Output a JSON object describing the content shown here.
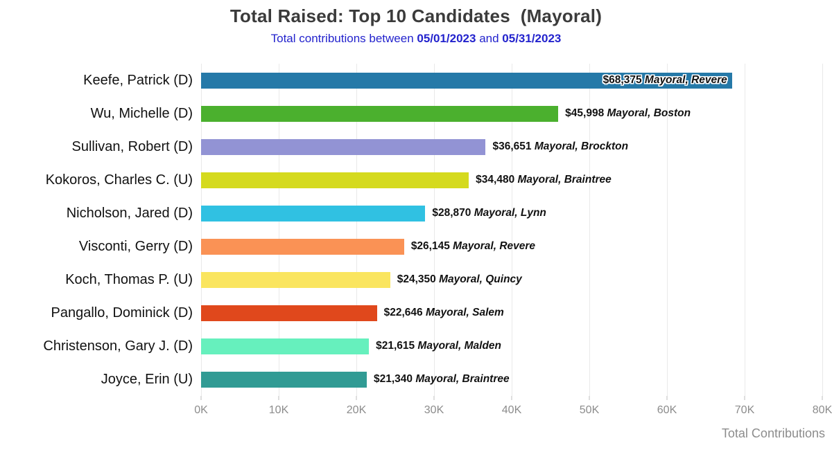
{
  "header": {
    "title": "Total Raised: Top 10 Candidates  (Mayoral)",
    "subtitle_prefix": "Total contributions between ",
    "date_start": "05/01/2023",
    "subtitle_connector": " and ",
    "date_end": "05/31/2023",
    "title_color": "#3b3b3b",
    "subtitle_color": "#2323cd"
  },
  "chart_data": {
    "type": "bar",
    "orientation": "horizontal",
    "title": "Total Raised: Top 10 Candidates (Mayoral)",
    "subtitle": "Total contributions between 05/01/2023 and 05/31/2023",
    "categories": [
      "Keefe, Patrick (D)",
      "Wu, Michelle (D)",
      "Sullivan, Robert (D)",
      "Kokoros, Charles C. (U)",
      "Nicholson, Jared (D)",
      "Visconti, Gerry (D)",
      "Koch, Thomas P. (U)",
      "Pangallo, Dominick (D)",
      "Christenson, Gary J. (D)",
      "Joyce, Erin (U)"
    ],
    "values": [
      68375,
      45998,
      36651,
      34480,
      28870,
      26145,
      24350,
      22646,
      21615,
      21340
    ],
    "value_labels": [
      "$68,375",
      "$45,998",
      "$36,651",
      "$34,480",
      "$28,870",
      "$26,145",
      "$24,350",
      "$22,646",
      "$21,615",
      "$21,340"
    ],
    "race_labels": [
      "Mayoral, Revere",
      "Mayoral, Boston",
      "Mayoral, Brockton",
      "Mayoral, Braintree",
      "Mayoral, Lynn",
      "Mayoral, Revere",
      "Mayoral, Quincy",
      "Mayoral, Salem",
      "Mayoral, Malden",
      "Mayoral, Braintree"
    ],
    "bar_colors": [
      "#2579A8",
      "#4BB02E",
      "#9293D4",
      "#D5DA1E",
      "#30C1E2",
      "#FA9255",
      "#FAE55F",
      "#E0481C",
      "#66F0BD",
      "#319B94"
    ],
    "x_ticks": [
      "0K",
      "10K",
      "20K",
      "30K",
      "40K",
      "50K",
      "60K",
      "70K",
      "80K"
    ],
    "xlim": [
      0,
      80000
    ],
    "xlabel": "Total Contributions",
    "grid": "vertical gridlines every 10K",
    "legend": "none"
  }
}
